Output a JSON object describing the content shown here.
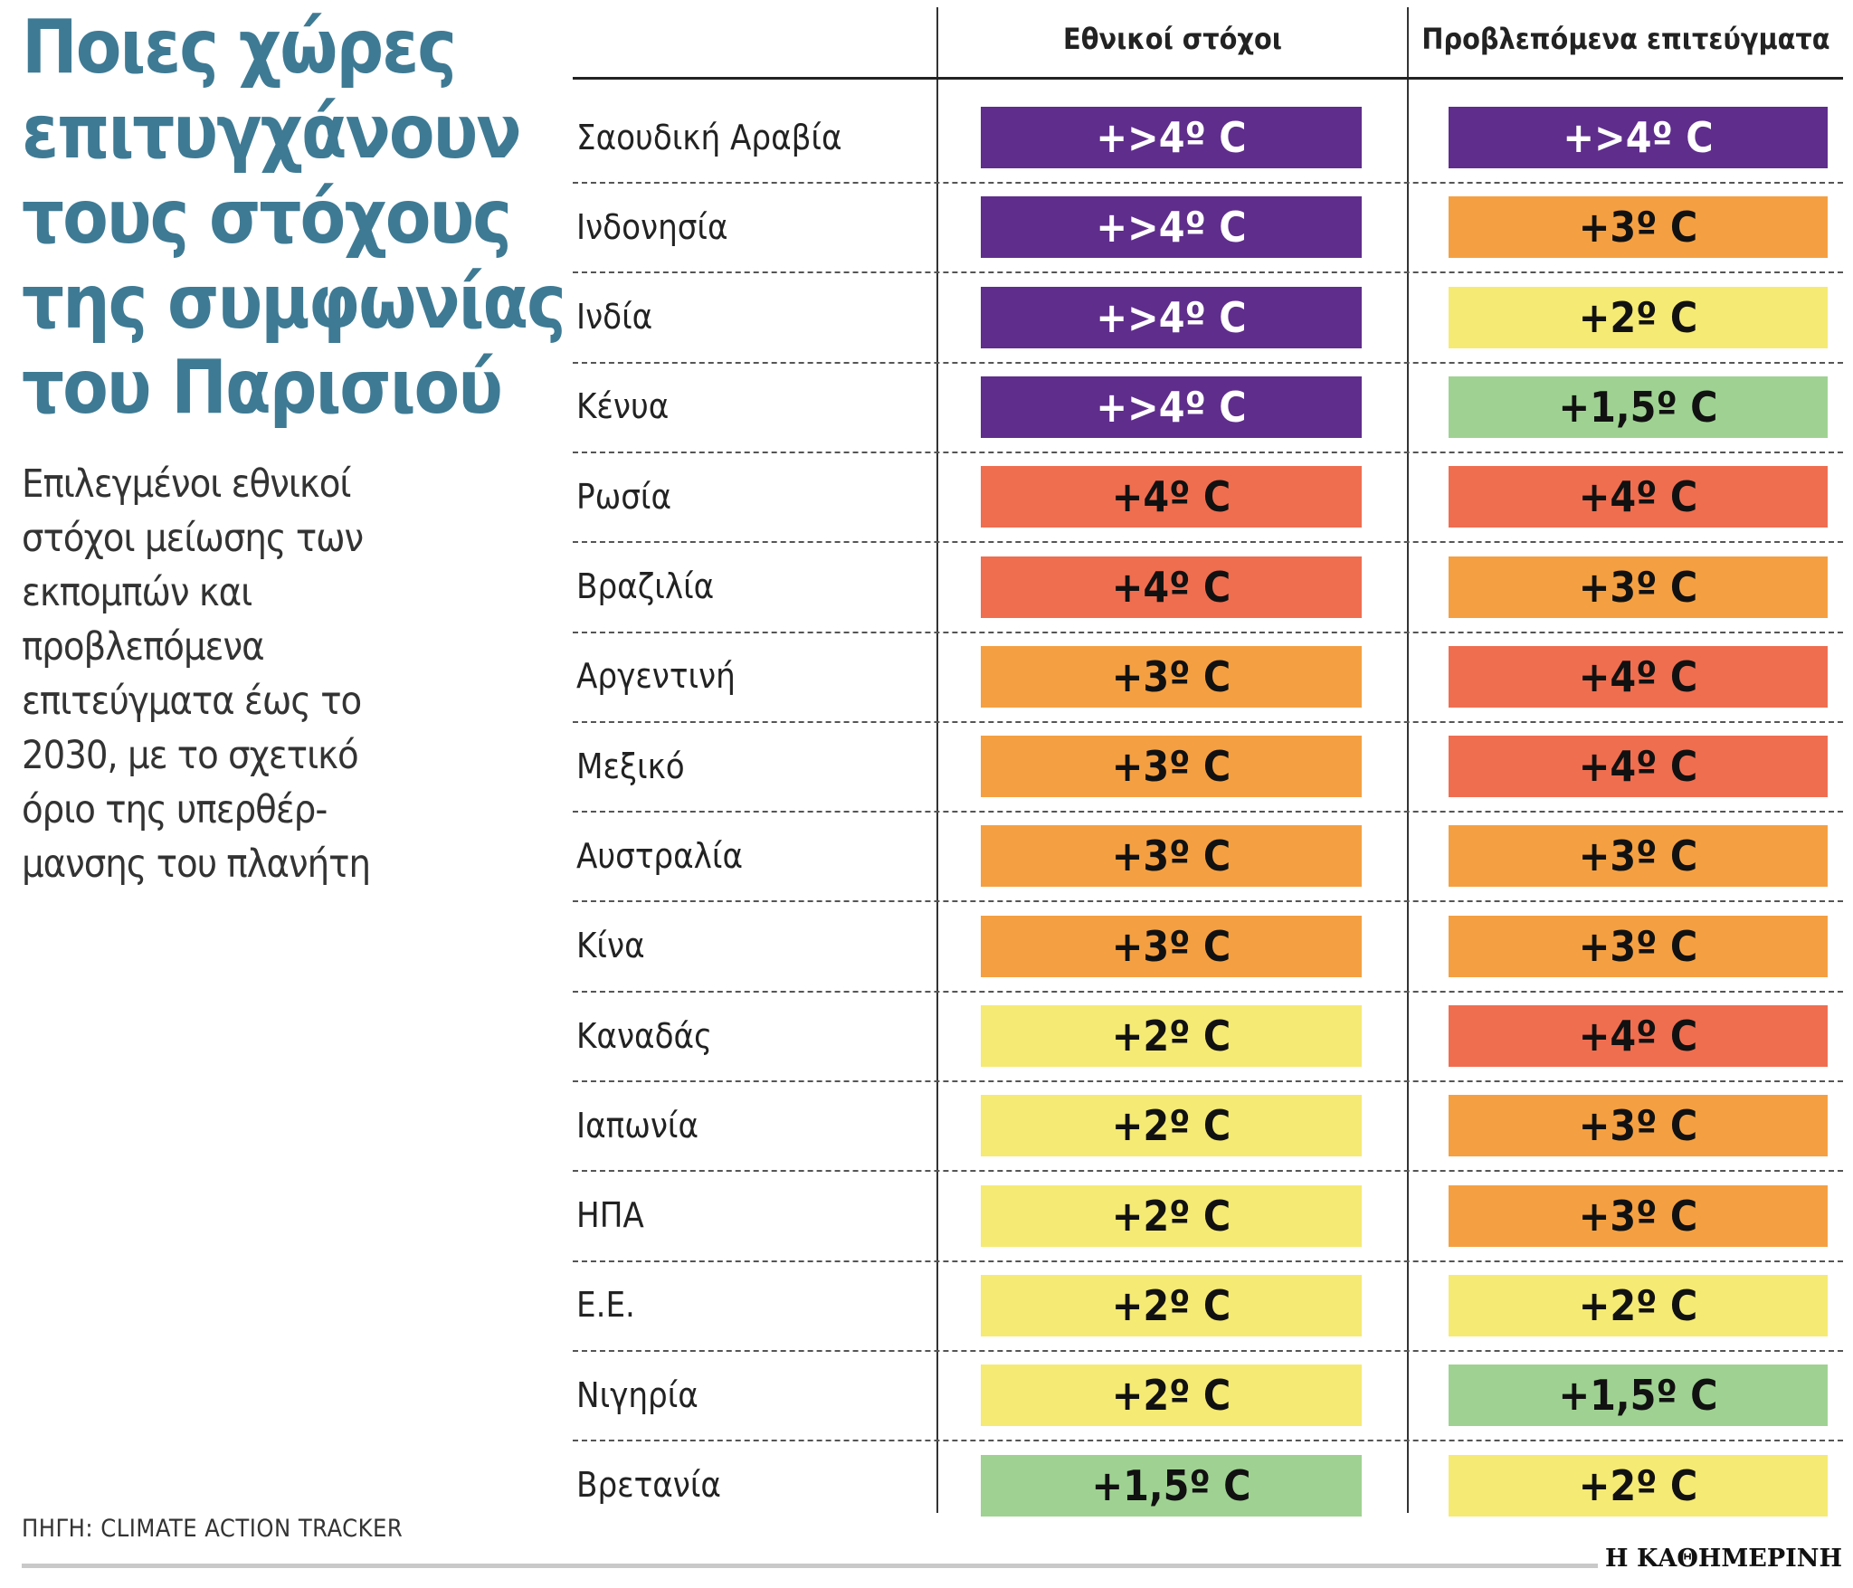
{
  "header": {
    "title": "Ποιες χώρες επιτυγχάνουν τους στόχους της συμφωνίας του Παρισιού",
    "description": "Επιλεγμένοι εθνικοί στόχοι μείωσης των εκπομπών και προβλεπόμενα επιτεύγματα έως το 2030, με το σχετικό όριο της υπερθέρ- μανσης του πλανήτη"
  },
  "table": {
    "columns": [
      "Εθνικοί στόχοι",
      "Προβλεπόμενα επιτεύγματα"
    ],
    "rows": [
      {
        "country": "Σαουδική Αραβία",
        "target": "+>4º C",
        "target_color": "#5f2d8c",
        "projected": "+>4º C",
        "projected_color": "#5f2d8c"
      },
      {
        "country": "Ινδονησία",
        "target": "+>4º C",
        "target_color": "#5f2d8c",
        "projected": "+3º C",
        "projected_color": "#f4a042"
      },
      {
        "country": "Ινδία",
        "target": "+>4º C",
        "target_color": "#5f2d8c",
        "projected": "+2º C",
        "projected_color": "#f5ea74"
      },
      {
        "country": "Κένυα",
        "target": "+>4º C",
        "target_color": "#5f2d8c",
        "projected": "+1,5º C",
        "projected_color": "#9fd292"
      },
      {
        "country": "Ρωσία",
        "target": "+4º C",
        "target_color": "#ef6e50",
        "projected": "+4º C",
        "projected_color": "#ef6e50"
      },
      {
        "country": "Βραζιλία",
        "target": "+4º C",
        "target_color": "#ef6e50",
        "projected": "+3º C",
        "projected_color": "#f4a042"
      },
      {
        "country": "Αργεντινή",
        "target": "+3º C",
        "target_color": "#f4a042",
        "projected": "+4º C",
        "projected_color": "#ef6e50"
      },
      {
        "country": "Μεξικό",
        "target": "+3º C",
        "target_color": "#f4a042",
        "projected": "+4º C",
        "projected_color": "#ef6e50"
      },
      {
        "country": "Αυστραλία",
        "target": "+3º C",
        "target_color": "#f4a042",
        "projected": "+3º C",
        "projected_color": "#f4a042"
      },
      {
        "country": "Κίνα",
        "target": "+3º C",
        "target_color": "#f4a042",
        "projected": "+3º C",
        "projected_color": "#f4a042"
      },
      {
        "country": "Καναδάς",
        "target": "+2º C",
        "target_color": "#f5ea74",
        "projected": "+4º C",
        "projected_color": "#ef6e50"
      },
      {
        "country": "Ιαπωνία",
        "target": "+2º C",
        "target_color": "#f5ea74",
        "projected": "+3º C",
        "projected_color": "#f4a042"
      },
      {
        "country": "ΗΠΑ",
        "target": "+2º C",
        "target_color": "#f5ea74",
        "projected": "+3º C",
        "projected_color": "#f4a042"
      },
      {
        "country": "Ε.Ε.",
        "target": "+2º C",
        "target_color": "#f5ea74",
        "projected": "+2º C",
        "projected_color": "#f5ea74"
      },
      {
        "country": "Νιγηρία",
        "target": "+2º C",
        "target_color": "#f5ea74",
        "projected": "+1,5º C",
        "projected_color": "#9fd292"
      },
      {
        "country": "Βρετανία",
        "target": "+1,5º C",
        "target_color": "#9fd292",
        "projected": "+2º C",
        "projected_color": "#f5ea74"
      }
    ]
  },
  "footer": {
    "source": "ΠΗΓΗ: CLIMATE ACTION TRACKER",
    "logo": "Η ΚΑΘΗΜΕΡΙΝΗ"
  }
}
